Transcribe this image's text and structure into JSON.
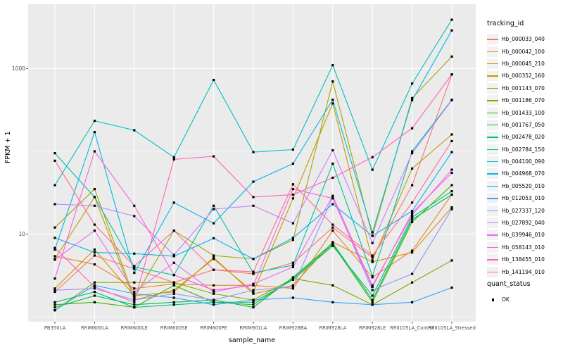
{
  "figure": {
    "background": "#FFFFFF",
    "panel_background": "#EBEBEB",
    "grid_color": "#FFFFFF",
    "tick_label_color": "#4D4D4D",
    "axis_title_color": "#000000",
    "point_color": "#000000"
  },
  "chart_data": {
    "type": "line",
    "title": "",
    "xlabel": "sample_name",
    "ylabel": "FPKM + 1",
    "y_scale": "log10",
    "yticks": [
      10,
      1000
    ],
    "ylim": [
      1,
      6000
    ],
    "grid": "on",
    "legend_position": "right",
    "legend_title": "tracking_id",
    "quant_legend": {
      "title": "quant_status",
      "ok_label": "OK",
      "point_shape": "filled-square"
    },
    "categories": [
      "PB350LA",
      "RRIM600LA",
      "RRIM600LE",
      "RRIM600SE",
      "RRIM600PE",
      "RRIM901LA",
      "RRIM928BA",
      "RRIM928LA",
      "RRIM928LE",
      "RRII105LA_Control",
      "RRII105LA_Stressed"
    ],
    "series": [
      {
        "name": "Hb_000033_040",
        "color": "#F8766D",
        "values": [
          2.0,
          5.5,
          3.8,
          2.6,
          3.7,
          3.3,
          4.5,
          12,
          5.2,
          39,
          850
        ]
      },
      {
        "name": "Hb_000042_100",
        "color": "#EA8331",
        "values": [
          5.4,
          4.3,
          2.2,
          2.5,
          2.4,
          2.4,
          2.2,
          11,
          3.0,
          6.3,
          30
        ]
      },
      {
        "name": "Hb_000045_210",
        "color": "#D89000",
        "values": [
          2.2,
          6.5,
          1.8,
          2.0,
          5.2,
          1.9,
          2.4,
          8.0,
          4.6,
          6.0,
          21
        ]
      },
      {
        "name": "Hb_000352_160",
        "color": "#C09B00",
        "values": [
          5.0,
          28,
          1.6,
          2.1,
          5.0,
          2.0,
          27,
          380,
          4.8,
          62,
          160
        ]
      },
      {
        "name": "Hb_001143_070",
        "color": "#A3A500",
        "values": [
          12,
          35,
          1.7,
          11,
          5.5,
          5.0,
          8.5,
          700,
          9.5,
          440,
          1400
        ]
      },
      {
        "name": "Hb_001186_070",
        "color": "#7CAE00",
        "values": [
          1.2,
          2.6,
          2.6,
          2.6,
          1.9,
          1.6,
          2.9,
          2.4,
          1.4,
          2.6,
          4.8
        ]
      },
      {
        "name": "Hb_001433_100",
        "color": "#39B600",
        "values": [
          1.4,
          1.5,
          1.3,
          2.4,
          1.5,
          1.4,
          2.9,
          7.5,
          1.5,
          14,
          39
        ]
      },
      {
        "name": "Hb_001767_050",
        "color": "#00BB4E",
        "values": [
          1.3,
          1.8,
          1.4,
          1.5,
          1.6,
          1.3,
          3.0,
          7.8,
          1.6,
          15,
          30
        ]
      },
      {
        "name": "Hb_002478_020",
        "color": "#00BF7D",
        "values": [
          1.5,
          2.0,
          1.3,
          1.4,
          1.5,
          1.5,
          2.8,
          7.2,
          1.8,
          16,
          33
        ]
      },
      {
        "name": "Hb_002784_150",
        "color": "#00C1A3",
        "values": [
          95,
          28,
          4.0,
          3.2,
          22,
          3.4,
          4.2,
          71,
          3.1,
          100,
          420
        ]
      },
      {
        "name": "Hb_004100_090",
        "color": "#00BFC4",
        "values": [
          39,
          234,
          180,
          85,
          730,
          98,
          105,
          1100,
          60,
          660,
          3900
        ]
      },
      {
        "name": "Hb_004968_070",
        "color": "#00BAE0",
        "values": [
          6.5,
          171,
          3.4,
          24,
          13.5,
          43,
          71,
          420,
          10.5,
          415,
          2900
        ]
      },
      {
        "name": "Hb_005520_010",
        "color": "#00B0F6",
        "values": [
          9.0,
          6.0,
          5.8,
          5.4,
          8.9,
          5.0,
          9.0,
          23,
          9.5,
          19,
          98
        ]
      },
      {
        "name": "Hb_012053_010",
        "color": "#35A2FF",
        "values": [
          1.2,
          2.4,
          1.9,
          1.7,
          1.4,
          1.6,
          1.7,
          1.5,
          1.4,
          1.5,
          2.25
        ]
      },
      {
        "name": "Hb_027337_120",
        "color": "#9590FF",
        "values": [
          2.1,
          2.2,
          1.6,
          1.9,
          1.6,
          2.1,
          2.3,
          28,
          2.1,
          3.3,
          20
        ]
      },
      {
        "name": "Hb_027892_040",
        "color": "#C77CFF",
        "values": [
          23,
          22,
          16.5,
          5.6,
          20,
          22,
          13.5,
          103,
          7.8,
          95,
          415
        ]
      },
      {
        "name": "Hb_039946_010",
        "color": "#E76BF3",
        "values": [
          4.9,
          11,
          2.0,
          4.5,
          2.0,
          2.5,
          4.0,
          29,
          2.4,
          17,
          60
        ]
      },
      {
        "name": "Hb_058143_010",
        "color": "#FA62DB",
        "values": [
          2.9,
          100,
          22,
          3.2,
          2.1,
          2.4,
          35,
          27,
          2.3,
          18,
          55
        ]
      },
      {
        "name": "Hb_138455_010",
        "color": "#FF62BC",
        "values": [
          6.8,
          2.3,
          1.5,
          80,
          87,
          28,
          30,
          48,
          85,
          190,
          850
        ]
      },
      {
        "name": "Hb_141194_010",
        "color": "#FF6A98",
        "values": [
          77,
          13,
          4.1,
          11,
          3.7,
          3.5,
          40,
          13,
          5.5,
          24,
          133
        ]
      }
    ]
  }
}
